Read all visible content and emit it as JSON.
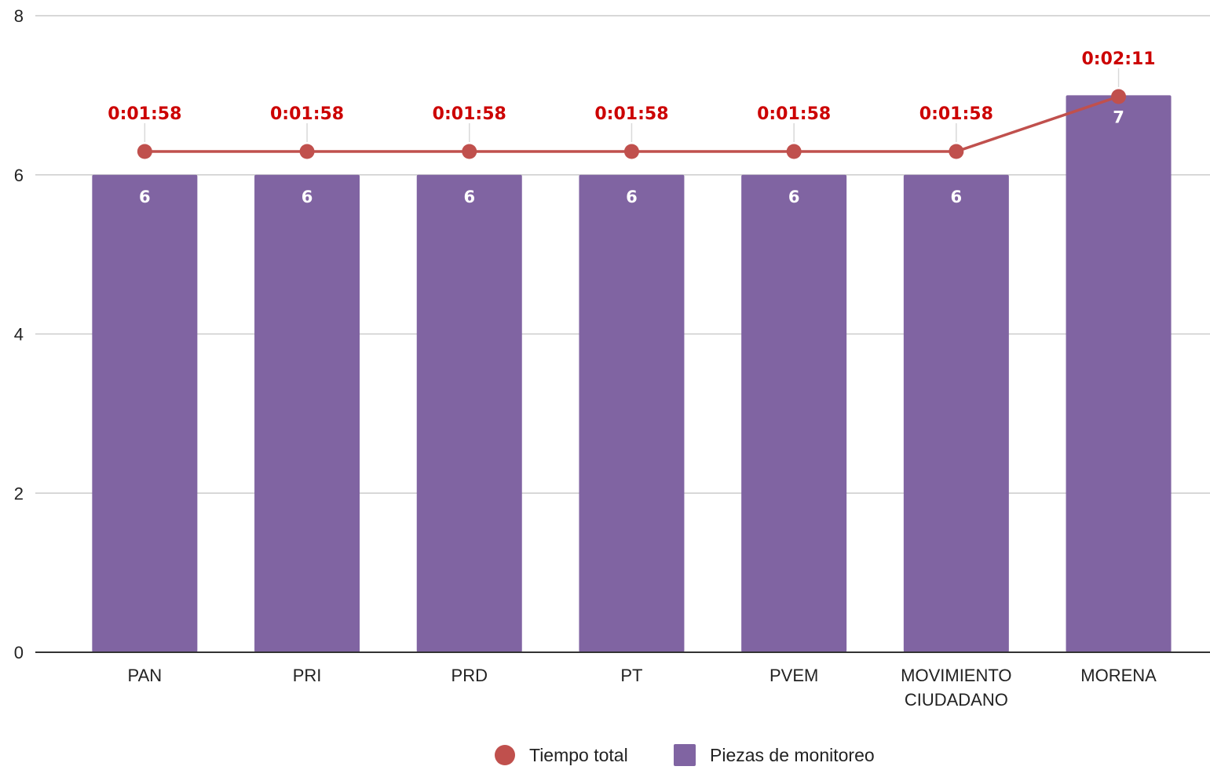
{
  "colors": {
    "bar": "#8064a2",
    "line": "#c0504d",
    "line_label": "#cc0000",
    "grid": "#cccccc",
    "axis": "#333333"
  },
  "chart_data": {
    "type": "bar",
    "categories": [
      [
        "PAN"
      ],
      [
        "PRI"
      ],
      [
        "PRD"
      ],
      [
        "PT"
      ],
      [
        "PVEM"
      ],
      [
        "MOVIMIENTO",
        "CIUDADANO"
      ],
      [
        "MORENA"
      ]
    ],
    "ylim": [
      0,
      8
    ],
    "yticks": [
      "0",
      "2",
      "4",
      "6",
      "8"
    ],
    "grid": true,
    "legend_position": "bottom",
    "series": [
      {
        "name": "Piezas de monitoreo",
        "type": "bar",
        "values": [
          6,
          6,
          6,
          6,
          6,
          6,
          7
        ],
        "labels": [
          "6",
          "6",
          "6",
          "6",
          "6",
          "6",
          "7"
        ]
      },
      {
        "name": "Tiempo total",
        "type": "line",
        "values_seconds": [
          118,
          118,
          118,
          118,
          118,
          118,
          131
        ],
        "labels": [
          "0:01:58",
          "0:01:58",
          "0:01:58",
          "0:01:58",
          "0:01:58",
          "0:01:58",
          "0:02:11"
        ]
      }
    ]
  },
  "legend": {
    "items": [
      {
        "label": "Tiempo total",
        "marker": "circle"
      },
      {
        "label": "Piezas de monitoreo",
        "marker": "square"
      }
    ]
  }
}
